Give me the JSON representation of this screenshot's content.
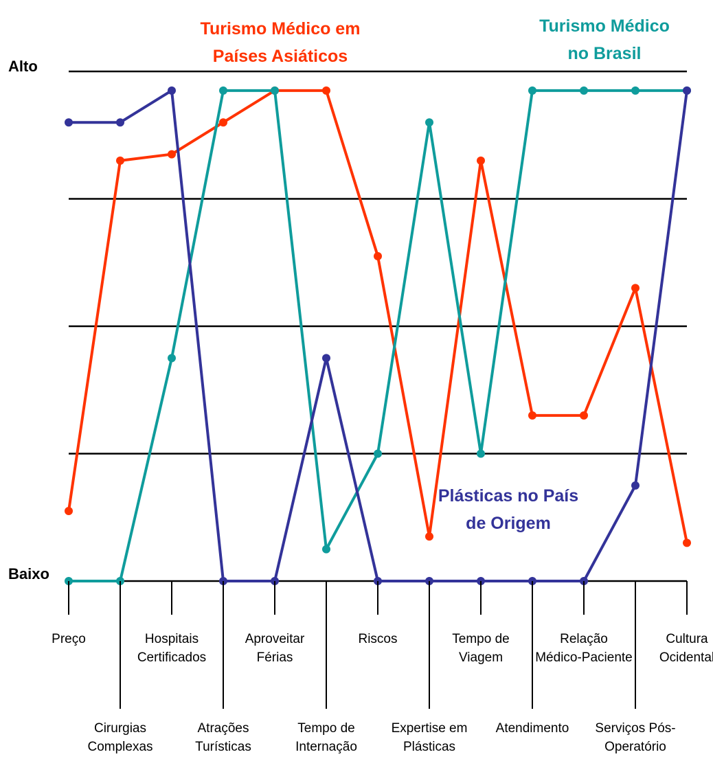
{
  "chart_data": {
    "type": "line",
    "ylabel_top": "Alto",
    "ylabel_bottom": "Baixo",
    "ylim": [
      0,
      4
    ],
    "grid": true,
    "categories": [
      [
        "Preço"
      ],
      [
        "Cirurgias",
        "Complexas"
      ],
      [
        "Hospitais",
        "Certificados"
      ],
      [
        "Atrações",
        "Turísticas"
      ],
      [
        "Aproveitar",
        "Férias"
      ],
      [
        "Tempo de",
        "Internação"
      ],
      [
        "Riscos"
      ],
      [
        "Expertise em",
        "Plásticas"
      ],
      [
        "Tempo de",
        "Viagem"
      ],
      [
        "Atendimento"
      ],
      [
        "Relação",
        "Médico-Paciente"
      ],
      [
        "Serviços Pós-",
        "Operatório"
      ],
      [
        "Cultura",
        "Ocidental"
      ]
    ],
    "series": [
      {
        "name": [
          "Turismo Médico em",
          "Países Asiáticos"
        ],
        "color": "#ff3300",
        "values": [
          0.55,
          3.3,
          3.35,
          3.6,
          3.85,
          3.85,
          2.55,
          0.35,
          3.3,
          1.3,
          1.3,
          2.3,
          0.3
        ]
      },
      {
        "name": [
          "Turismo Médico",
          "no Brasil"
        ],
        "color": "#0f9c9c",
        "values": [
          0,
          0,
          1.75,
          3.85,
          3.85,
          0.25,
          1.0,
          3.6,
          1.0,
          3.85,
          3.85,
          3.85,
          3.85
        ]
      },
      {
        "name": [
          "Plásticas no País",
          "de Origem"
        ],
        "color": "#333399",
        "values": [
          3.6,
          3.6,
          3.85,
          0,
          0,
          1.75,
          0,
          0,
          0,
          0,
          0,
          0.75,
          3.85
        ]
      }
    ]
  }
}
